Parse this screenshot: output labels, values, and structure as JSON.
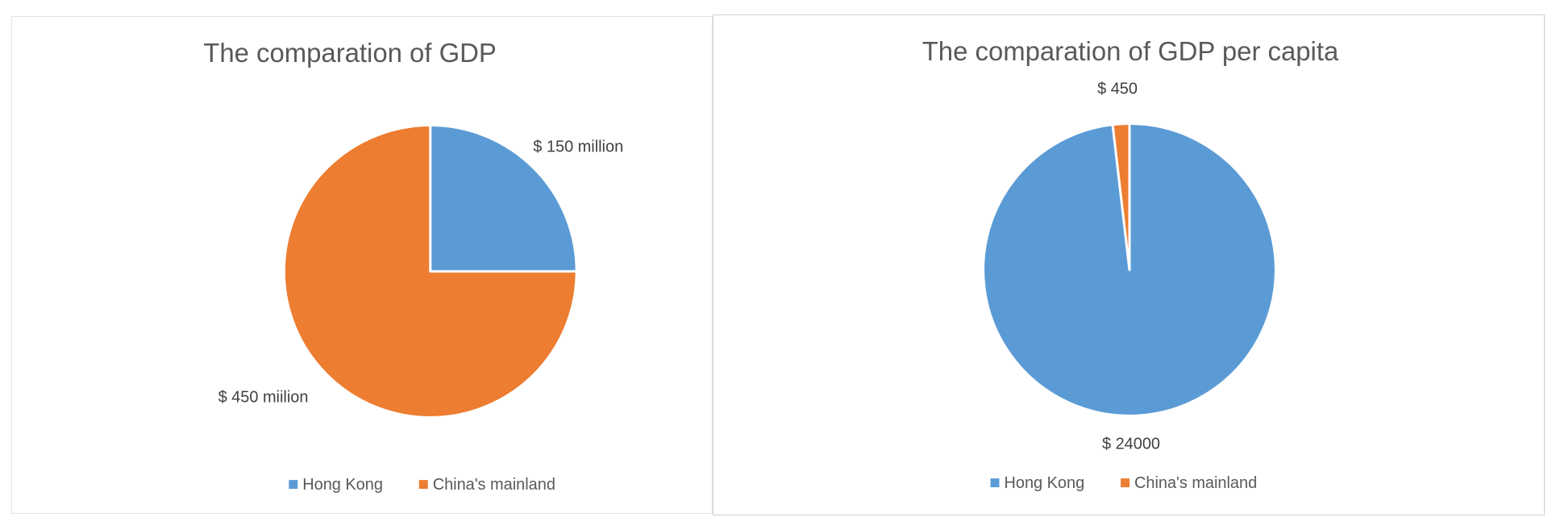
{
  "colors": {
    "hong_kong": "#5b9bd5",
    "china_mainland": "#ed7d31",
    "title": "#595959",
    "label": "#404040"
  },
  "chart_data": [
    {
      "type": "pie",
      "title": "The comparation of GDP",
      "categories": [
        "Hong Kong",
        "China's mainland"
      ],
      "values": [
        150,
        450
      ],
      "data_labels": [
        "$ 150 million",
        "$ 450 miilion"
      ],
      "legend": {
        "position": "bottom",
        "entries": [
          "Hong Kong",
          "China's mainland"
        ]
      }
    },
    {
      "type": "pie",
      "title": "The comparation of GDP per capita",
      "categories": [
        "Hong Kong",
        "China's mainland"
      ],
      "values": [
        24000,
        450
      ],
      "data_labels": [
        "$ 24000",
        "$ 450"
      ],
      "legend": {
        "position": "bottom",
        "entries": [
          "Hong Kong",
          "China's mainland"
        ]
      }
    }
  ]
}
